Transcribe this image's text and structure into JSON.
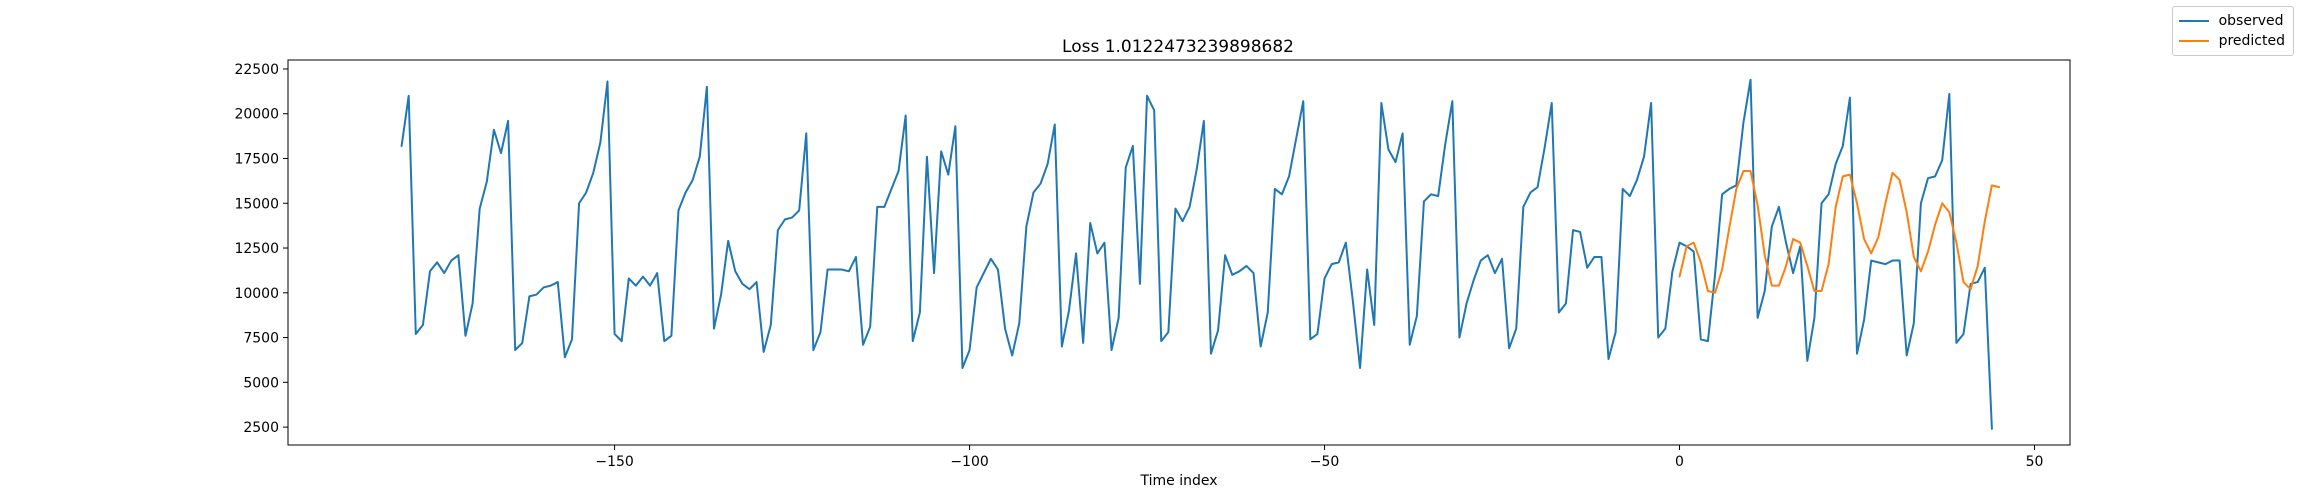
{
  "chart_data": {
    "type": "line",
    "title": "Loss 1.0122473239898682",
    "xlabel": "Time index",
    "ylabel": "",
    "xlim": [
      -196,
      55
    ],
    "ylim": [
      1500,
      23000
    ],
    "x_ticks": [
      -150,
      -100,
      -50,
      0,
      50
    ],
    "y_ticks": [
      2500,
      5000,
      7500,
      10000,
      12500,
      15000,
      17500,
      20000,
      22500
    ],
    "grid": false,
    "legend_position": "top-right",
    "colors": {
      "observed": "#1f77b4",
      "predicted": "#ff7f0e"
    },
    "series": [
      {
        "name": "observed",
        "x_start": -180,
        "x_step": 1,
        "values": [
          18200,
          21000,
          7700,
          8200,
          11200,
          11700,
          11100,
          11800,
          12100,
          7600,
          9400,
          14700,
          16200,
          19100,
          17800,
          19600,
          6800,
          7200,
          9800,
          9900,
          10300,
          10400,
          10600,
          6400,
          7400,
          15000,
          15600,
          16700,
          18400,
          21800,
          7700,
          7300,
          10800,
          10400,
          10900,
          10400,
          11100,
          7300,
          7600,
          14600,
          15600,
          16300,
          17600,
          21500,
          8000,
          9900,
          12900,
          11200,
          10500,
          10200,
          10600,
          6700,
          8200,
          13500,
          14100,
          14200,
          14600,
          18900,
          6800,
          7800,
          11300,
          11300,
          11300,
          11200,
          12000,
          7100,
          8100,
          14800,
          14800,
          15800,
          16800,
          19900,
          7300,
          8900,
          17600,
          11100,
          17900,
          16600,
          19300,
          5800,
          6800,
          10300,
          11100,
          11900,
          11300,
          8000,
          6500,
          8300,
          13700,
          15600,
          16100,
          17200,
          19400,
          7000,
          9000,
          12200,
          7200,
          13900,
          12200,
          12800,
          6800,
          8600,
          17000,
          18200,
          10500,
          21000,
          20200,
          7300,
          7800,
          14700,
          14000,
          14800,
          16900,
          19600,
          6600,
          7900,
          12100,
          11000,
          11200,
          11500,
          11100,
          7000,
          8900,
          15800,
          15500,
          16500,
          18600,
          20700,
          7400,
          7700,
          10800,
          11600,
          11700,
          12800,
          9500,
          5800,
          11300,
          8200,
          20600,
          18000,
          17300,
          18900,
          7100,
          8700,
          15100,
          15500,
          15400,
          18300,
          20700,
          7500,
          9400,
          10700,
          11800,
          12100,
          11100,
          11900,
          6900,
          8000,
          14800,
          15600,
          15900,
          18100,
          20600,
          8900,
          9400,
          13500,
          13400,
          11400,
          12000,
          12000,
          6300,
          7800,
          15800,
          15400,
          16300,
          17600,
          20600,
          7500,
          8000,
          11200,
          12800,
          12600,
          12300,
          7400,
          7300,
          11000,
          15500,
          15800,
          16000,
          19500,
          21900,
          8600,
          10100,
          13700,
          14800,
          12800,
          11100,
          12600,
          6200,
          8600,
          15000,
          15500,
          17200,
          18200,
          20900,
          6600,
          8500,
          11800,
          11700,
          11600,
          11800,
          11800,
          6500,
          8300,
          15000,
          16400,
          16500,
          17400,
          21100,
          7200,
          7700,
          10500,
          10600,
          11400,
          2400
        ]
      },
      {
        "name": "predicted",
        "x_start": 0,
        "x_step": 1,
        "values": [
          10900,
          12600,
          12800,
          11700,
          10100,
          10000,
          11300,
          13600,
          15800,
          16800,
          16800,
          14900,
          12100,
          10400,
          10400,
          11500,
          13000,
          12800,
          11500,
          10100,
          10100,
          11600,
          14800,
          16500,
          16600,
          15000,
          13000,
          12200,
          13100,
          15000,
          16700,
          16300,
          14500,
          12000,
          11200,
          12300,
          13800,
          15000,
          14500,
          12800,
          10600,
          10200,
          11500,
          14000,
          16000,
          15900
        ]
      }
    ]
  }
}
